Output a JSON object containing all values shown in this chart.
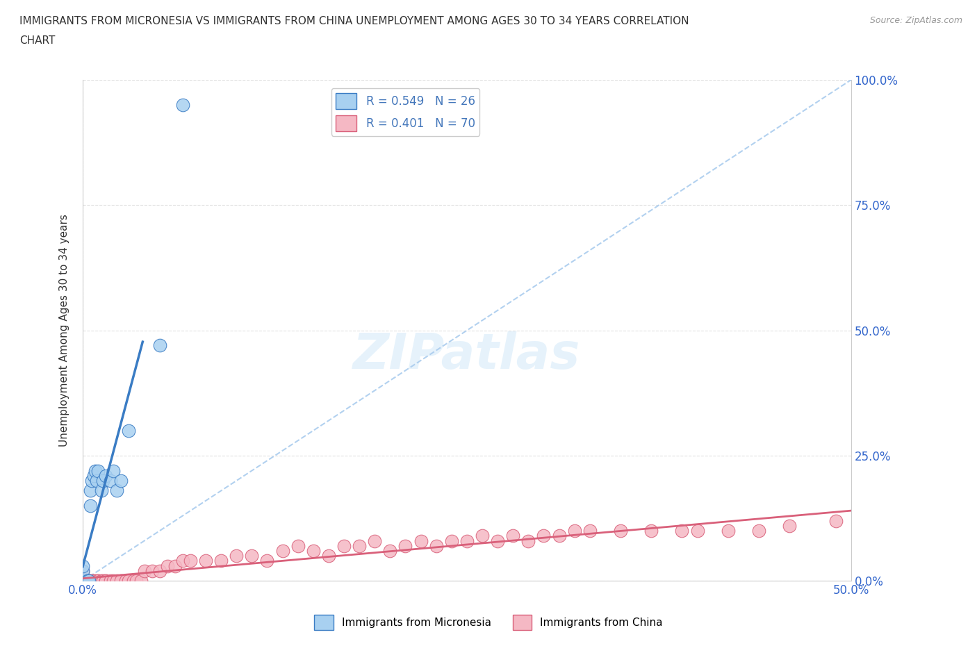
{
  "title_line1": "IMMIGRANTS FROM MICRONESIA VS IMMIGRANTS FROM CHINA UNEMPLOYMENT AMONG AGES 30 TO 34 YEARS CORRELATION",
  "title_line2": "CHART",
  "source": "Source: ZipAtlas.com",
  "ylabel": "Unemployment Among Ages 30 to 34 years",
  "xlim": [
    0.0,
    0.5
  ],
  "ylim": [
    0.0,
    1.0
  ],
  "xtick_positions": [
    0.0,
    0.5
  ],
  "xticklabels": [
    "0.0%",
    "50.0%"
  ],
  "ytick_positions": [
    0.0,
    0.25,
    0.5,
    0.75,
    1.0
  ],
  "yticklabels_right": [
    "0.0%",
    "25.0%",
    "50.0%",
    "75.0%",
    "100.0%"
  ],
  "micronesia_color": "#A8D0F0",
  "china_color": "#F5B8C4",
  "micronesia_line_color": "#3A7CC4",
  "china_line_color": "#D9607A",
  "trend_dashed_color": "#AACCEE",
  "R_micronesia": 0.549,
  "N_micronesia": 26,
  "R_china": 0.401,
  "N_china": 70,
  "legend_R_color": "#4477BB",
  "micronesia_x": [
    0.0,
    0.0,
    0.0,
    0.0,
    0.0,
    0.0,
    0.003,
    0.003,
    0.004,
    0.005,
    0.005,
    0.006,
    0.007,
    0.008,
    0.009,
    0.01,
    0.012,
    0.013,
    0.015,
    0.018,
    0.02,
    0.022,
    0.025,
    0.03,
    0.05,
    0.065
  ],
  "micronesia_y": [
    0.0,
    0.0,
    0.0,
    0.0,
    0.02,
    0.03,
    0.0,
    0.0,
    0.0,
    0.15,
    0.18,
    0.2,
    0.21,
    0.22,
    0.2,
    0.22,
    0.18,
    0.2,
    0.21,
    0.2,
    0.22,
    0.18,
    0.2,
    0.3,
    0.47,
    0.95
  ],
  "china_x": [
    0.0,
    0.0,
    0.0,
    0.0,
    0.0,
    0.0,
    0.0,
    0.0,
    0.003,
    0.004,
    0.005,
    0.006,
    0.007,
    0.008,
    0.01,
    0.01,
    0.012,
    0.013,
    0.015,
    0.015,
    0.018,
    0.02,
    0.022,
    0.025,
    0.028,
    0.03,
    0.033,
    0.035,
    0.038,
    0.04,
    0.045,
    0.05,
    0.055,
    0.06,
    0.065,
    0.07,
    0.08,
    0.09,
    0.1,
    0.11,
    0.12,
    0.13,
    0.14,
    0.15,
    0.16,
    0.17,
    0.18,
    0.19,
    0.2,
    0.21,
    0.22,
    0.23,
    0.24,
    0.25,
    0.26,
    0.27,
    0.28,
    0.29,
    0.3,
    0.31,
    0.32,
    0.33,
    0.35,
    0.37,
    0.39,
    0.4,
    0.42,
    0.44,
    0.46,
    0.49
  ],
  "china_y": [
    0.0,
    0.0,
    0.0,
    0.0,
    0.0,
    0.0,
    0.0,
    0.02,
    0.0,
    0.0,
    0.0,
    0.0,
    0.0,
    0.0,
    0.0,
    0.0,
    0.0,
    0.0,
    0.0,
    0.0,
    0.0,
    0.0,
    0.0,
    0.0,
    0.0,
    0.0,
    0.0,
    0.0,
    0.0,
    0.02,
    0.02,
    0.02,
    0.03,
    0.03,
    0.04,
    0.04,
    0.04,
    0.04,
    0.05,
    0.05,
    0.04,
    0.06,
    0.07,
    0.06,
    0.05,
    0.07,
    0.07,
    0.08,
    0.06,
    0.07,
    0.08,
    0.07,
    0.08,
    0.08,
    0.09,
    0.08,
    0.09,
    0.08,
    0.09,
    0.09,
    0.1,
    0.1,
    0.1,
    0.1,
    0.1,
    0.1,
    0.1,
    0.1,
    0.11,
    0.12
  ]
}
